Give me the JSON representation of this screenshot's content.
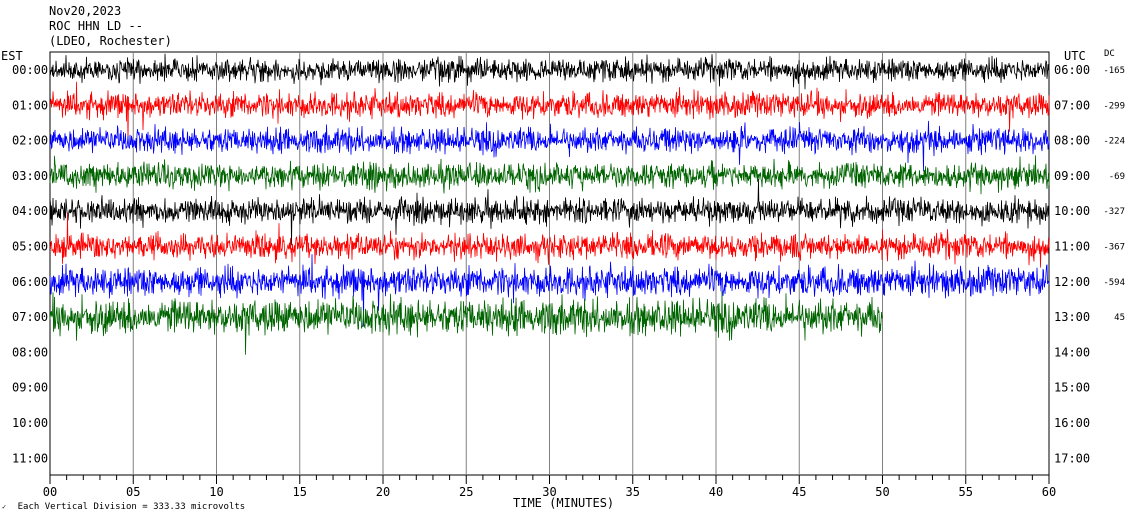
{
  "header": {
    "date": "Nov20,2023",
    "station": "ROC HHN LD --",
    "location": "(LDEO, Rochester)"
  },
  "chart_data": {
    "type": "line",
    "title": "",
    "xlabel": "TIME (MINUTES)",
    "ylabel_left": "EST",
    "ylabel_right": "UTC",
    "dc_label": "DC",
    "xlim": [
      0,
      60
    ],
    "x_ticks": [
      "00",
      "05",
      "10",
      "15",
      "20",
      "25",
      "30",
      "35",
      "40",
      "45",
      "50",
      "55",
      "60"
    ],
    "left_hours": [
      "00:00",
      "01:00",
      "02:00",
      "03:00",
      "04:00",
      "05:00",
      "06:00",
      "07:00",
      "08:00",
      "09:00",
      "10:00",
      "11:00"
    ],
    "right_hours": [
      "06:00",
      "07:00",
      "08:00",
      "09:00",
      "10:00",
      "11:00",
      "12:00",
      "13:00",
      "14:00",
      "15:00",
      "16:00",
      "17:00"
    ],
    "grid": true,
    "traces": [
      {
        "hour": "00:00",
        "color": "#000000",
        "dc": "-165",
        "end_minute": 60,
        "amplitude_divisions": 0.55
      },
      {
        "hour": "01:00",
        "color": "#ff0000",
        "dc": "-299",
        "end_minute": 60,
        "amplitude_divisions": 0.6
      },
      {
        "hour": "02:00",
        "color": "#0000ff",
        "dc": "-224",
        "end_minute": 60,
        "amplitude_divisions": 0.6
      },
      {
        "hour": "03:00",
        "color": "#006400",
        "dc": "-69",
        "end_minute": 60,
        "amplitude_divisions": 0.6
      },
      {
        "hour": "04:00",
        "color": "#000000",
        "dc": "-327",
        "end_minute": 60,
        "amplitude_divisions": 0.6
      },
      {
        "hour": "05:00",
        "color": "#ff0000",
        "dc": "-367",
        "end_minute": 60,
        "amplitude_divisions": 0.6
      },
      {
        "hour": "06:00",
        "color": "#0000ff",
        "dc": "-594",
        "end_minute": 60,
        "amplitude_divisions": 0.7
      },
      {
        "hour": "07:00",
        "color": "#006400",
        "dc": "45",
        "end_minute": 50,
        "amplitude_divisions": 0.85
      }
    ],
    "scale_note": "Each Vertical Division =  333.33 microvolts"
  }
}
